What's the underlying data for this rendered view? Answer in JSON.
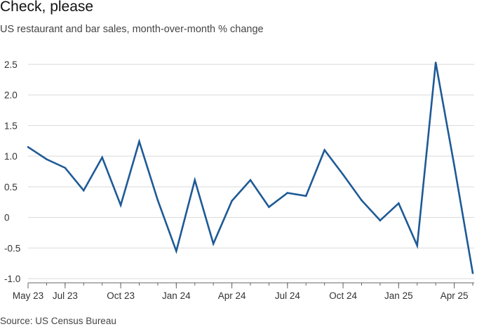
{
  "header": {
    "title": "Check, please",
    "subtitle": "US restaurant and bar sales, month-over-month % change"
  },
  "footer": {
    "source": "Source: US Census Bureau"
  },
  "colors": {
    "line": "#1e5a96",
    "grid": "#d9d9d9",
    "axis": "#666666",
    "text": "#333333"
  },
  "chart_data": {
    "type": "line",
    "title": "Check, please",
    "subtitle": "US restaurant and bar sales, month-over-month % change",
    "xlabel": "",
    "ylabel": "",
    "ylim": [
      -1.0,
      2.5
    ],
    "grid": true,
    "yticks": [
      2.5,
      2.0,
      1.5,
      1.0,
      0.5,
      0,
      -0.5,
      -1.0
    ],
    "ytick_labels": [
      "2.5",
      "2.0",
      "1.5",
      "1.0",
      "0.5",
      "0",
      "-0.5",
      "-1.0"
    ],
    "xtick_labels": [
      "May 23",
      "Jul 23",
      "Oct 23",
      "Jan 24",
      "Apr 24",
      "Jul 24",
      "Oct 24",
      "Jan 25",
      "Apr 25"
    ],
    "xtick_months": [
      "2023-05",
      "2023-07",
      "2023-10",
      "2024-01",
      "2024-04",
      "2024-07",
      "2024-10",
      "2025-01",
      "2025-04"
    ],
    "series": [
      {
        "x": [
          "2023-05",
          "2023-06",
          "2023-07",
          "2023-08",
          "2023-09",
          "2023-10",
          "2023-11",
          "2023-12",
          "2024-01",
          "2024-02",
          "2024-03",
          "2024-04",
          "2024-05",
          "2024-06",
          "2024-07",
          "2024-08",
          "2024-09",
          "2024-10",
          "2024-11",
          "2024-12",
          "2025-01",
          "2025-02",
          "2025-03",
          "2025-04",
          "2025-05"
        ],
        "values": [
          1.15,
          0.95,
          0.81,
          0.44,
          0.98,
          0.2,
          1.24,
          0.28,
          -0.55,
          0.61,
          -0.43,
          0.27,
          0.61,
          0.17,
          0.4,
          0.35,
          1.1,
          0.7,
          0.28,
          -0.05,
          0.23,
          -0.46,
          2.53,
          0.85,
          -0.91
        ]
      }
    ]
  }
}
